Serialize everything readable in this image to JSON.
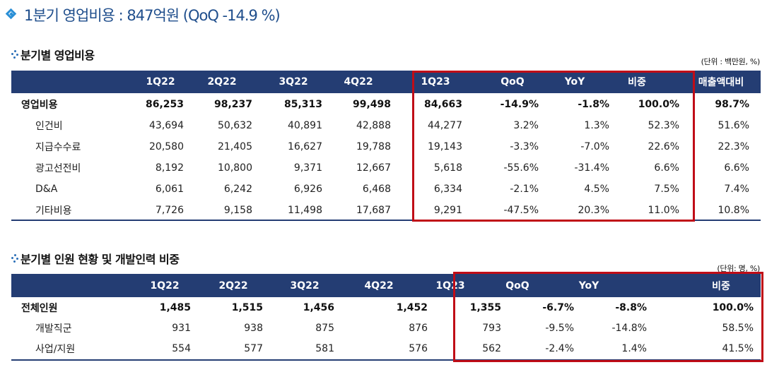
{
  "title": "1분기 영업비용 : 847억원 (QoQ -14.9 %)",
  "section1": {
    "heading": "분기별 영업비용",
    "unit": "(단위 : 백만원, %)",
    "columns": [
      "",
      "1Q22",
      "2Q22",
      "3Q22",
      "4Q22",
      "1Q23",
      "QoQ",
      "YoY",
      "비중",
      "매출액대비"
    ],
    "rows": [
      {
        "label": "영업비용",
        "bold": true,
        "values": [
          "86,253",
          "98,237",
          "85,313",
          "99,498",
          "84,663",
          "-14.9%",
          "-1.8%",
          "100.0%",
          "98.7%"
        ]
      },
      {
        "label": "인건비",
        "values": [
          "43,694",
          "50,632",
          "40,891",
          "42,888",
          "44,277",
          "3.2%",
          "1.3%",
          "52.3%",
          "51.6%"
        ]
      },
      {
        "label": "지급수수료",
        "values": [
          "20,580",
          "21,405",
          "16,627",
          "19,788",
          "19,143",
          "-3.3%",
          "-7.0%",
          "22.6%",
          "22.3%"
        ]
      },
      {
        "label": "광고선전비",
        "values": [
          "8,192",
          "10,800",
          "9,371",
          "12,667",
          "5,618",
          "-55.6%",
          "-31.4%",
          "6.6%",
          "6.6%"
        ]
      },
      {
        "label": "D&A",
        "values": [
          "6,061",
          "6,242",
          "6,926",
          "6,468",
          "6,334",
          "-2.1%",
          "4.5%",
          "7.5%",
          "7.4%"
        ]
      },
      {
        "label": "기타비용",
        "values": [
          "7,726",
          "9,158",
          "11,498",
          "17,687",
          "9,291",
          "-47.5%",
          "20.3%",
          "11.0%",
          "10.8%"
        ]
      }
    ]
  },
  "section2": {
    "heading": "분기별 인원 현황 및 개발인력 비중",
    "unit": "(단위: 명, %)",
    "columns": [
      "",
      "1Q22",
      "2Q22",
      "3Q22",
      "4Q22",
      "1Q23",
      "QoQ",
      "YoY",
      "비중"
    ],
    "rows": [
      {
        "label": "전체인원",
        "bold": true,
        "values": [
          "1,485",
          "1,515",
          "1,456",
          "1,452",
          "1,355",
          "-6.7%",
          "-8.8%",
          "100.0%"
        ]
      },
      {
        "label": "개발직군",
        "values": [
          "931",
          "938",
          "875",
          "876",
          "793",
          "-9.5%",
          "-14.8%",
          "58.5%"
        ]
      },
      {
        "label": "사업/지원",
        "values": [
          "554",
          "577",
          "581",
          "576",
          "562",
          "-2.4%",
          "1.4%",
          "41.5%"
        ]
      }
    ]
  },
  "colors": {
    "header_bg": "#243d73",
    "highlight_border": "#c00d17",
    "title": "#1f4e8c",
    "icon": "#2a8fd6"
  }
}
